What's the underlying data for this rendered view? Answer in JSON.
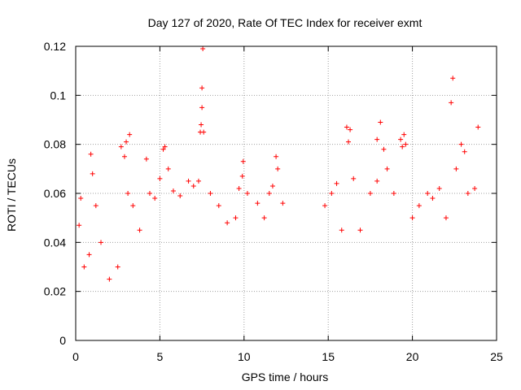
{
  "chart_data": {
    "type": "scatter",
    "title": "Day 127 of 2020, Rate Of TEC Index for receiver exmt",
    "xlabel": "GPS time / hours",
    "ylabel": "ROTI / TECUs",
    "xlim": [
      0,
      25
    ],
    "ylim": [
      0,
      0.12
    ],
    "xticks": [
      0,
      5,
      10,
      15,
      20,
      25
    ],
    "xtick_labels": [
      "0",
      "5",
      "10",
      "15",
      "20",
      "25"
    ],
    "yticks": [
      0,
      0.02,
      0.04,
      0.06,
      0.08,
      0.1,
      0.12
    ],
    "ytick_labels": [
      "0",
      "0.02",
      "0.04",
      "0.06",
      "0.08",
      "0.1",
      "0.12"
    ],
    "grid": true,
    "marker": "+",
    "color": "#ff0000",
    "data_gap_hours": [
      12.6,
      14.5
    ],
    "series": [
      {
        "name": "ROTI",
        "points": [
          [
            0.2,
            0.047
          ],
          [
            0.3,
            0.058
          ],
          [
            0.5,
            0.03
          ],
          [
            0.8,
            0.035
          ],
          [
            0.9,
            0.076
          ],
          [
            1.0,
            0.068
          ],
          [
            1.2,
            0.055
          ],
          [
            1.5,
            0.04
          ],
          [
            2.0,
            0.025
          ],
          [
            2.5,
            0.03
          ],
          [
            2.7,
            0.079
          ],
          [
            2.9,
            0.075
          ],
          [
            3.0,
            0.081
          ],
          [
            3.2,
            0.084
          ],
          [
            3.1,
            0.06
          ],
          [
            3.4,
            0.055
          ],
          [
            3.8,
            0.045
          ],
          [
            4.2,
            0.074
          ],
          [
            4.4,
            0.06
          ],
          [
            4.7,
            0.058
          ],
          [
            5.0,
            0.066
          ],
          [
            5.2,
            0.078
          ],
          [
            5.3,
            0.079
          ],
          [
            5.5,
            0.07
          ],
          [
            5.8,
            0.061
          ],
          [
            6.2,
            0.059
          ],
          [
            6.7,
            0.065
          ],
          [
            7.0,
            0.063
          ],
          [
            7.3,
            0.065
          ],
          [
            7.4,
            0.085
          ],
          [
            7.45,
            0.088
          ],
          [
            7.5,
            0.095
          ],
          [
            7.5,
            0.103
          ],
          [
            7.55,
            0.119
          ],
          [
            7.6,
            0.085
          ],
          [
            8.0,
            0.06
          ],
          [
            8.5,
            0.055
          ],
          [
            9.0,
            0.048
          ],
          [
            9.5,
            0.05
          ],
          [
            9.7,
            0.062
          ],
          [
            9.9,
            0.067
          ],
          [
            9.95,
            0.073
          ],
          [
            10.2,
            0.06
          ],
          [
            10.8,
            0.056
          ],
          [
            11.2,
            0.05
          ],
          [
            11.5,
            0.06
          ],
          [
            11.7,
            0.063
          ],
          [
            11.9,
            0.075
          ],
          [
            12.0,
            0.07
          ],
          [
            12.3,
            0.056
          ],
          [
            14.8,
            0.055
          ],
          [
            15.2,
            0.06
          ],
          [
            15.5,
            0.064
          ],
          [
            15.8,
            0.045
          ],
          [
            16.1,
            0.087
          ],
          [
            16.2,
            0.081
          ],
          [
            16.3,
            0.086
          ],
          [
            16.5,
            0.066
          ],
          [
            16.9,
            0.045
          ],
          [
            17.5,
            0.06
          ],
          [
            17.9,
            0.065
          ],
          [
            17.9,
            0.082
          ],
          [
            18.1,
            0.089
          ],
          [
            18.3,
            0.078
          ],
          [
            18.5,
            0.07
          ],
          [
            18.9,
            0.06
          ],
          [
            19.3,
            0.082
          ],
          [
            19.4,
            0.079
          ],
          [
            19.5,
            0.084
          ],
          [
            19.6,
            0.08
          ],
          [
            20.0,
            0.05
          ],
          [
            20.4,
            0.055
          ],
          [
            20.9,
            0.06
          ],
          [
            21.2,
            0.058
          ],
          [
            21.6,
            0.062
          ],
          [
            22.0,
            0.05
          ],
          [
            22.3,
            0.097
          ],
          [
            22.4,
            0.107
          ],
          [
            22.6,
            0.07
          ],
          [
            22.9,
            0.08
          ],
          [
            23.1,
            0.077
          ],
          [
            23.3,
            0.06
          ],
          [
            23.7,
            0.062
          ],
          [
            23.9,
            0.087
          ]
        ]
      }
    ]
  }
}
